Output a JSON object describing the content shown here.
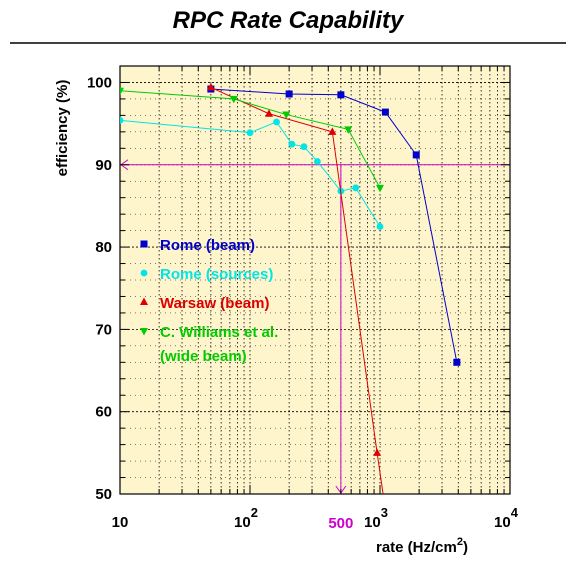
{
  "title": "RPC Rate Capability",
  "chart_data": {
    "type": "scatter",
    "title": "RPC Rate Capability",
    "xlabel": "rate (Hz/cm",
    "xlabel_sup": "2",
    "xlabel_close": ")",
    "ylabel": "efficiency (%)",
    "xscale": "log",
    "xlim": [
      10,
      10000
    ],
    "ylim": [
      50,
      102
    ],
    "x_ticks": [
      {
        "value": 10,
        "base": "10",
        "exp": ""
      },
      {
        "value": 100,
        "base": "10",
        "exp": "2"
      },
      {
        "value": 1000,
        "base": "10",
        "exp": "3"
      },
      {
        "value": 10000,
        "base": "10",
        "exp": "4"
      }
    ],
    "y_ticks": [
      50,
      60,
      70,
      80,
      90,
      100
    ],
    "grid": true,
    "legend_position": "left-center",
    "reference": {
      "y": 90,
      "x": 500,
      "x_label": "500",
      "color": "#cc00cc"
    },
    "series": [
      {
        "name": "Rome (beam)",
        "color": "#0000cc",
        "marker": "square",
        "x": [
          50,
          200,
          500,
          1100,
          1900,
          3900
        ],
        "y": [
          99.2,
          98.6,
          98.5,
          96.4,
          91.2,
          66.0
        ]
      },
      {
        "name": "Rome (sources)",
        "color": "#00e5e5",
        "marker": "circle",
        "x": [
          10,
          100,
          160,
          210,
          260,
          330,
          500,
          650,
          1000
        ],
        "y": [
          95.4,
          93.9,
          95.2,
          92.5,
          92.2,
          90.4,
          86.8,
          87.2,
          82.5
        ]
      },
      {
        "name": "Warsaw (beam)",
        "color": "#dd0000",
        "marker": "triangle",
        "x": [
          50,
          140,
          430,
          950,
          1150
        ],
        "y": [
          99.4,
          96.2,
          94.0,
          55.0,
          46.0
        ]
      },
      {
        "name": "C. Williams et al.",
        "name_line2": "(wide beam)",
        "color": "#00cc00",
        "marker": "triangle-down",
        "x": [
          10,
          75,
          190,
          570,
          1000
        ],
        "y": [
          99.0,
          98.0,
          96.1,
          94.3,
          87.2
        ]
      }
    ]
  }
}
